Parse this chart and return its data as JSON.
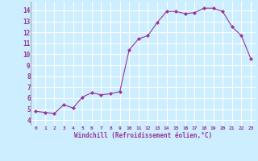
{
  "x": [
    0,
    1,
    2,
    3,
    4,
    5,
    6,
    7,
    8,
    9,
    10,
    11,
    12,
    13,
    14,
    15,
    16,
    17,
    18,
    19,
    20,
    21,
    22,
    23
  ],
  "y": [
    4.8,
    4.7,
    4.6,
    5.4,
    5.1,
    6.1,
    6.5,
    6.3,
    6.4,
    6.6,
    10.4,
    11.4,
    11.7,
    12.9,
    13.9,
    13.9,
    13.7,
    13.8,
    14.2,
    14.2,
    13.9,
    12.5,
    11.7,
    9.6
  ],
  "line_color": "#993399",
  "marker": "D",
  "marker_size": 2,
  "bg_color": "#cceeff",
  "grid_color": "#ffffff",
  "xlabel": "Windchill (Refroidissement éolien,°C)",
  "xlabel_color": "#993399",
  "tick_color": "#993399",
  "xlim": [
    -0.5,
    23.5
  ],
  "ylim": [
    3.5,
    14.8
  ],
  "yticks": [
    4,
    5,
    6,
    7,
    8,
    9,
    10,
    11,
    12,
    13,
    14
  ],
  "xticks": [
    0,
    1,
    2,
    3,
    4,
    5,
    6,
    7,
    8,
    9,
    10,
    11,
    12,
    13,
    14,
    15,
    16,
    17,
    18,
    19,
    20,
    21,
    22,
    23
  ],
  "xtick_labels": [
    "0",
    "1",
    "2",
    "3",
    "4",
    "5",
    "6",
    "7",
    "8",
    "9",
    "10",
    "11",
    "12",
    "13",
    "14",
    "15",
    "16",
    "17",
    "18",
    "19",
    "20",
    "21",
    "22",
    "23"
  ]
}
